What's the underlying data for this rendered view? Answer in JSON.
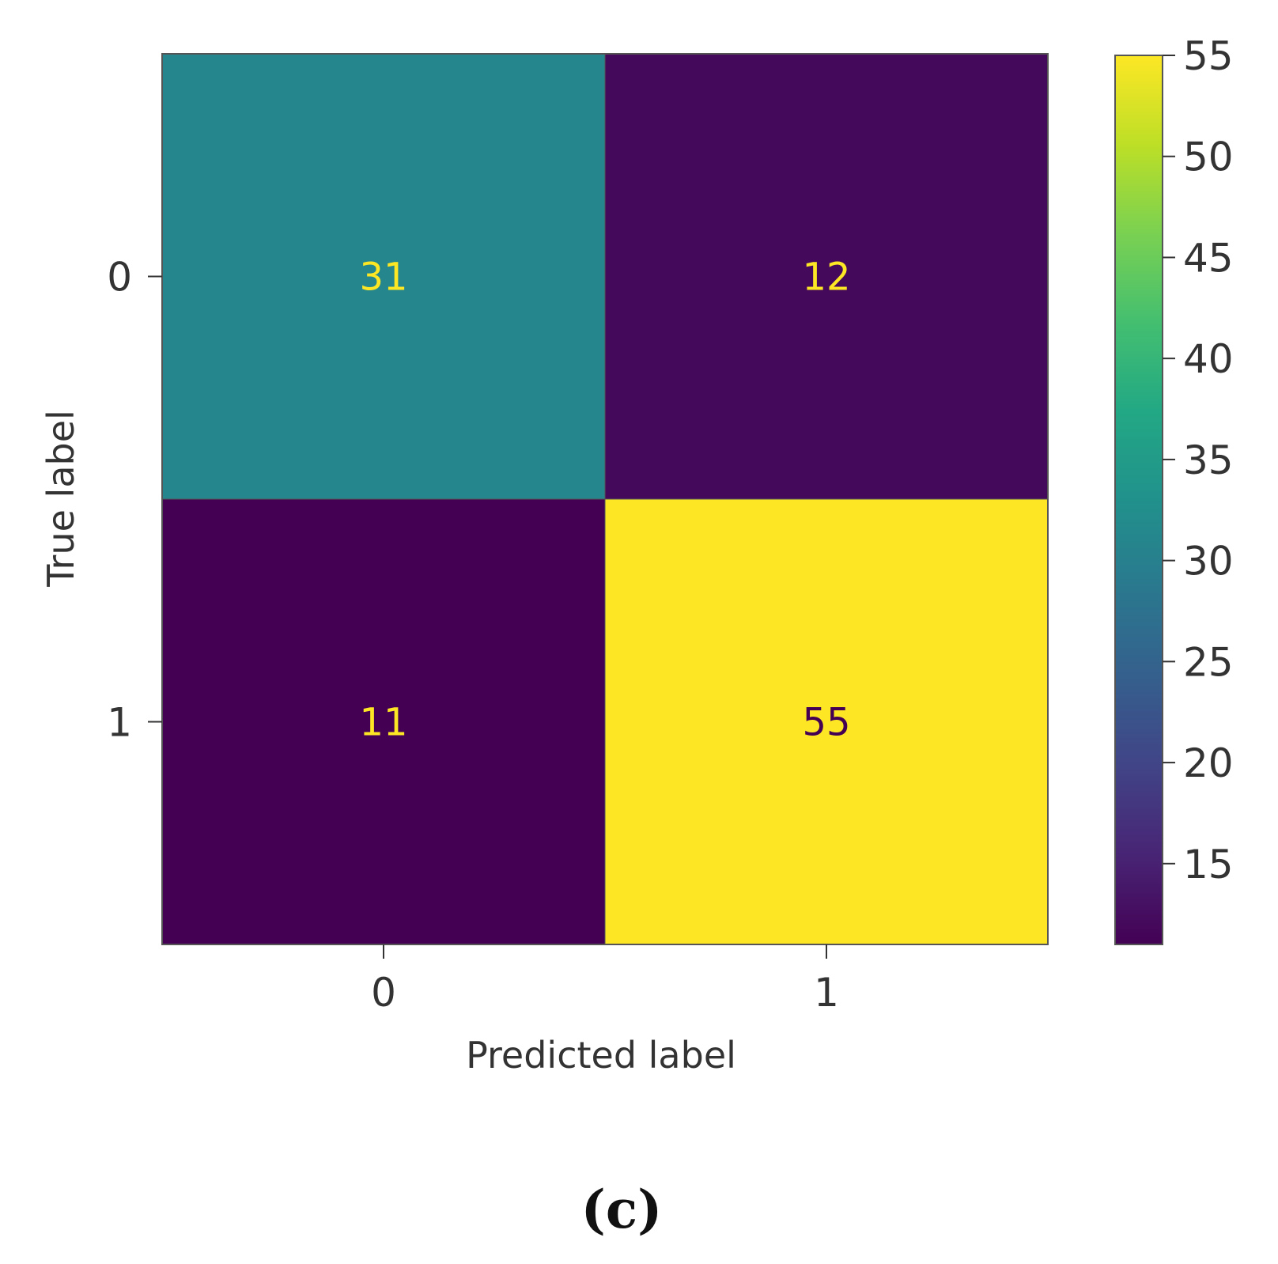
{
  "chart_data": {
    "type": "heatmap",
    "x_categories": [
      "0",
      "1"
    ],
    "y_categories": [
      "0",
      "1"
    ],
    "matrix": [
      [
        31,
        12
      ],
      [
        11,
        55
      ]
    ],
    "xlabel": "Predicted label",
    "ylabel": "True label",
    "colorbar": {
      "colormap": "viridis",
      "range": [
        11,
        55
      ],
      "ticks": [
        15,
        20,
        25,
        30,
        35,
        40,
        45,
        50,
        55
      ]
    },
    "cell_text_colors": {
      "on_light": "#440154",
      "on_dark": "#fde725"
    }
  },
  "caption": "(c)"
}
